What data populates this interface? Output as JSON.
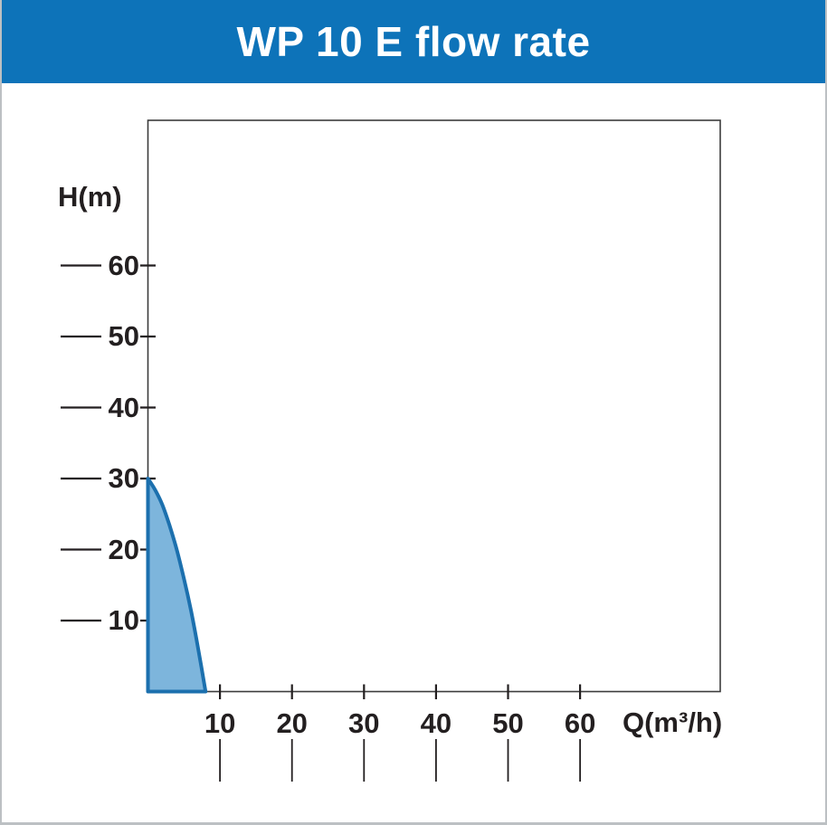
{
  "page": {
    "title": "WP 10 E flow rate"
  },
  "colors": {
    "banner": "#0d73b9",
    "title_text": "#ffffff",
    "label_text": "#231f20",
    "axis_line": "#3c3c3c",
    "curve_stroke": "#1c70ae",
    "curve_fill": "#7db5dc",
    "page_border": "#bcc0c3"
  },
  "chart_data": {
    "type": "area",
    "title": "WP 10 E flow rate",
    "xlabel": "Q(m³/h)",
    "ylabel": "H(m)",
    "x_ticks": [
      10,
      20,
      30,
      40,
      50,
      60
    ],
    "y_ticks": [
      10,
      20,
      30,
      40,
      50,
      60
    ],
    "xlim": [
      0,
      80
    ],
    "ylim": [
      0,
      80
    ],
    "grid": false,
    "legend": false,
    "series": [
      {
        "name": "WP 10 E",
        "points": [
          [
            0,
            30
          ],
          [
            1,
            28.4
          ],
          [
            2,
            26.3
          ],
          [
            3,
            23.4
          ],
          [
            4,
            20
          ],
          [
            5,
            15.9
          ],
          [
            6,
            11.3
          ],
          [
            7,
            5.9
          ],
          [
            8,
            0
          ]
        ]
      }
    ]
  }
}
